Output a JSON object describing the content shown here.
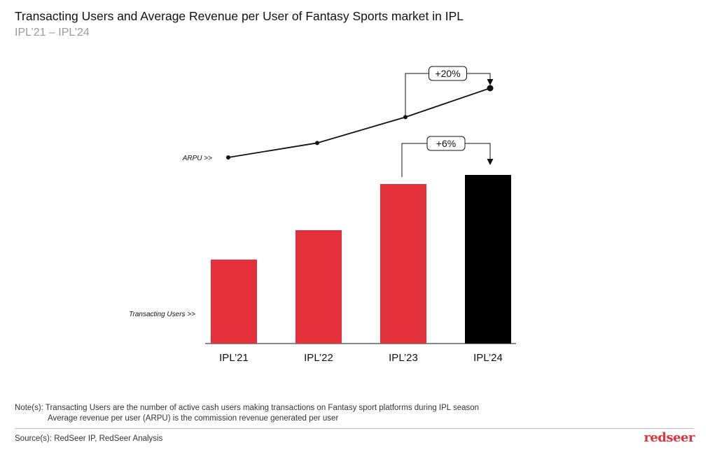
{
  "header": {
    "title": "Transacting Users and Average Revenue per User of Fantasy Sports market in IPL",
    "subtitle": "IPL’21 – IPL’24"
  },
  "chart_data": {
    "type": "bar",
    "categories": [
      "IPL’21",
      "IPL’22",
      "IPL’23",
      "IPL’24"
    ],
    "series": [
      {
        "name": "Transacting Users >>",
        "values": [
          120,
          162,
          228,
          241
        ],
        "colors": [
          "#e3303a",
          "#e3303a",
          "#e3303a",
          "#000000"
        ]
      },
      {
        "name": "ARPU >>",
        "type": "line",
        "values": [
          100,
          114,
          139,
          167
        ]
      }
    ],
    "annotations": [
      {
        "label": "+20%",
        "from": "IPL’23",
        "to": "IPL’24",
        "series": "ARPU >>"
      },
      {
        "label": "+6%",
        "from": "IPL’23",
        "to": "IPL’24",
        "series": "Transacting Users >>"
      }
    ],
    "xlabel": "",
    "ylabel": "",
    "grid": false,
    "axis_values_shown": false
  },
  "footer": {
    "note_line1": "Note(s): Transacting Users are the number of active cash users making transactions on Fantasy sport platforms during IPL season",
    "note_line2": "Average revenue per user (ARPU) is the commission revenue generated per user",
    "source": "Source(s): RedSeer IP, RedSeer Analysis",
    "logo_text": "redseer"
  },
  "colors": {
    "accent_red": "#e3303a",
    "highlight_black": "#000000"
  }
}
